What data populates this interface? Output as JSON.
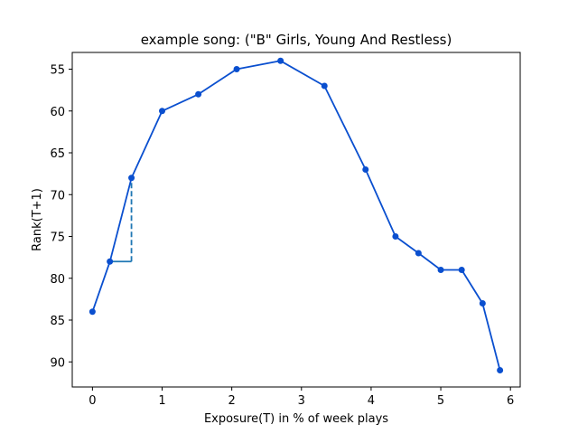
{
  "chart_data": {
    "type": "line",
    "title": "example song: (\"B\" Girls, Young And Restless)",
    "xlabel": "Exposure(T) in % of week plays",
    "ylabel": "Rank(T+1)",
    "xlim": [
      -0.29,
      6.14
    ],
    "ylim": [
      93.0,
      53.0
    ],
    "y_inverted": true,
    "x_ticks": [
      0,
      1,
      2,
      3,
      4,
      5,
      6
    ],
    "y_ticks": [
      55,
      60,
      65,
      70,
      75,
      80,
      85,
      90
    ],
    "grid": false,
    "series": [
      {
        "color": "#0a4fcf",
        "marker": "circle",
        "points": [
          {
            "x": 0.0,
            "y": 84
          },
          {
            "x": 0.25,
            "y": 78
          },
          {
            "x": 0.56,
            "y": 68
          },
          {
            "x": 1.0,
            "y": 60
          },
          {
            "x": 1.52,
            "y": 58
          },
          {
            "x": 2.07,
            "y": 55
          },
          {
            "x": 2.7,
            "y": 54
          },
          {
            "x": 3.33,
            "y": 57
          },
          {
            "x": 3.92,
            "y": 67
          },
          {
            "x": 4.35,
            "y": 75
          },
          {
            "x": 4.68,
            "y": 77
          },
          {
            "x": 5.0,
            "y": 79
          },
          {
            "x": 5.3,
            "y": 79
          },
          {
            "x": 5.6,
            "y": 83
          },
          {
            "x": 5.85,
            "y": 91
          }
        ]
      }
    ],
    "annotation": {
      "type": "step",
      "color": "#1f77b4",
      "horizontal": {
        "x1": 0.25,
        "x2": 0.56,
        "y": 78
      },
      "vertical": {
        "x": 0.56,
        "y1": 78,
        "y2": 68,
        "dashed": true
      }
    }
  }
}
